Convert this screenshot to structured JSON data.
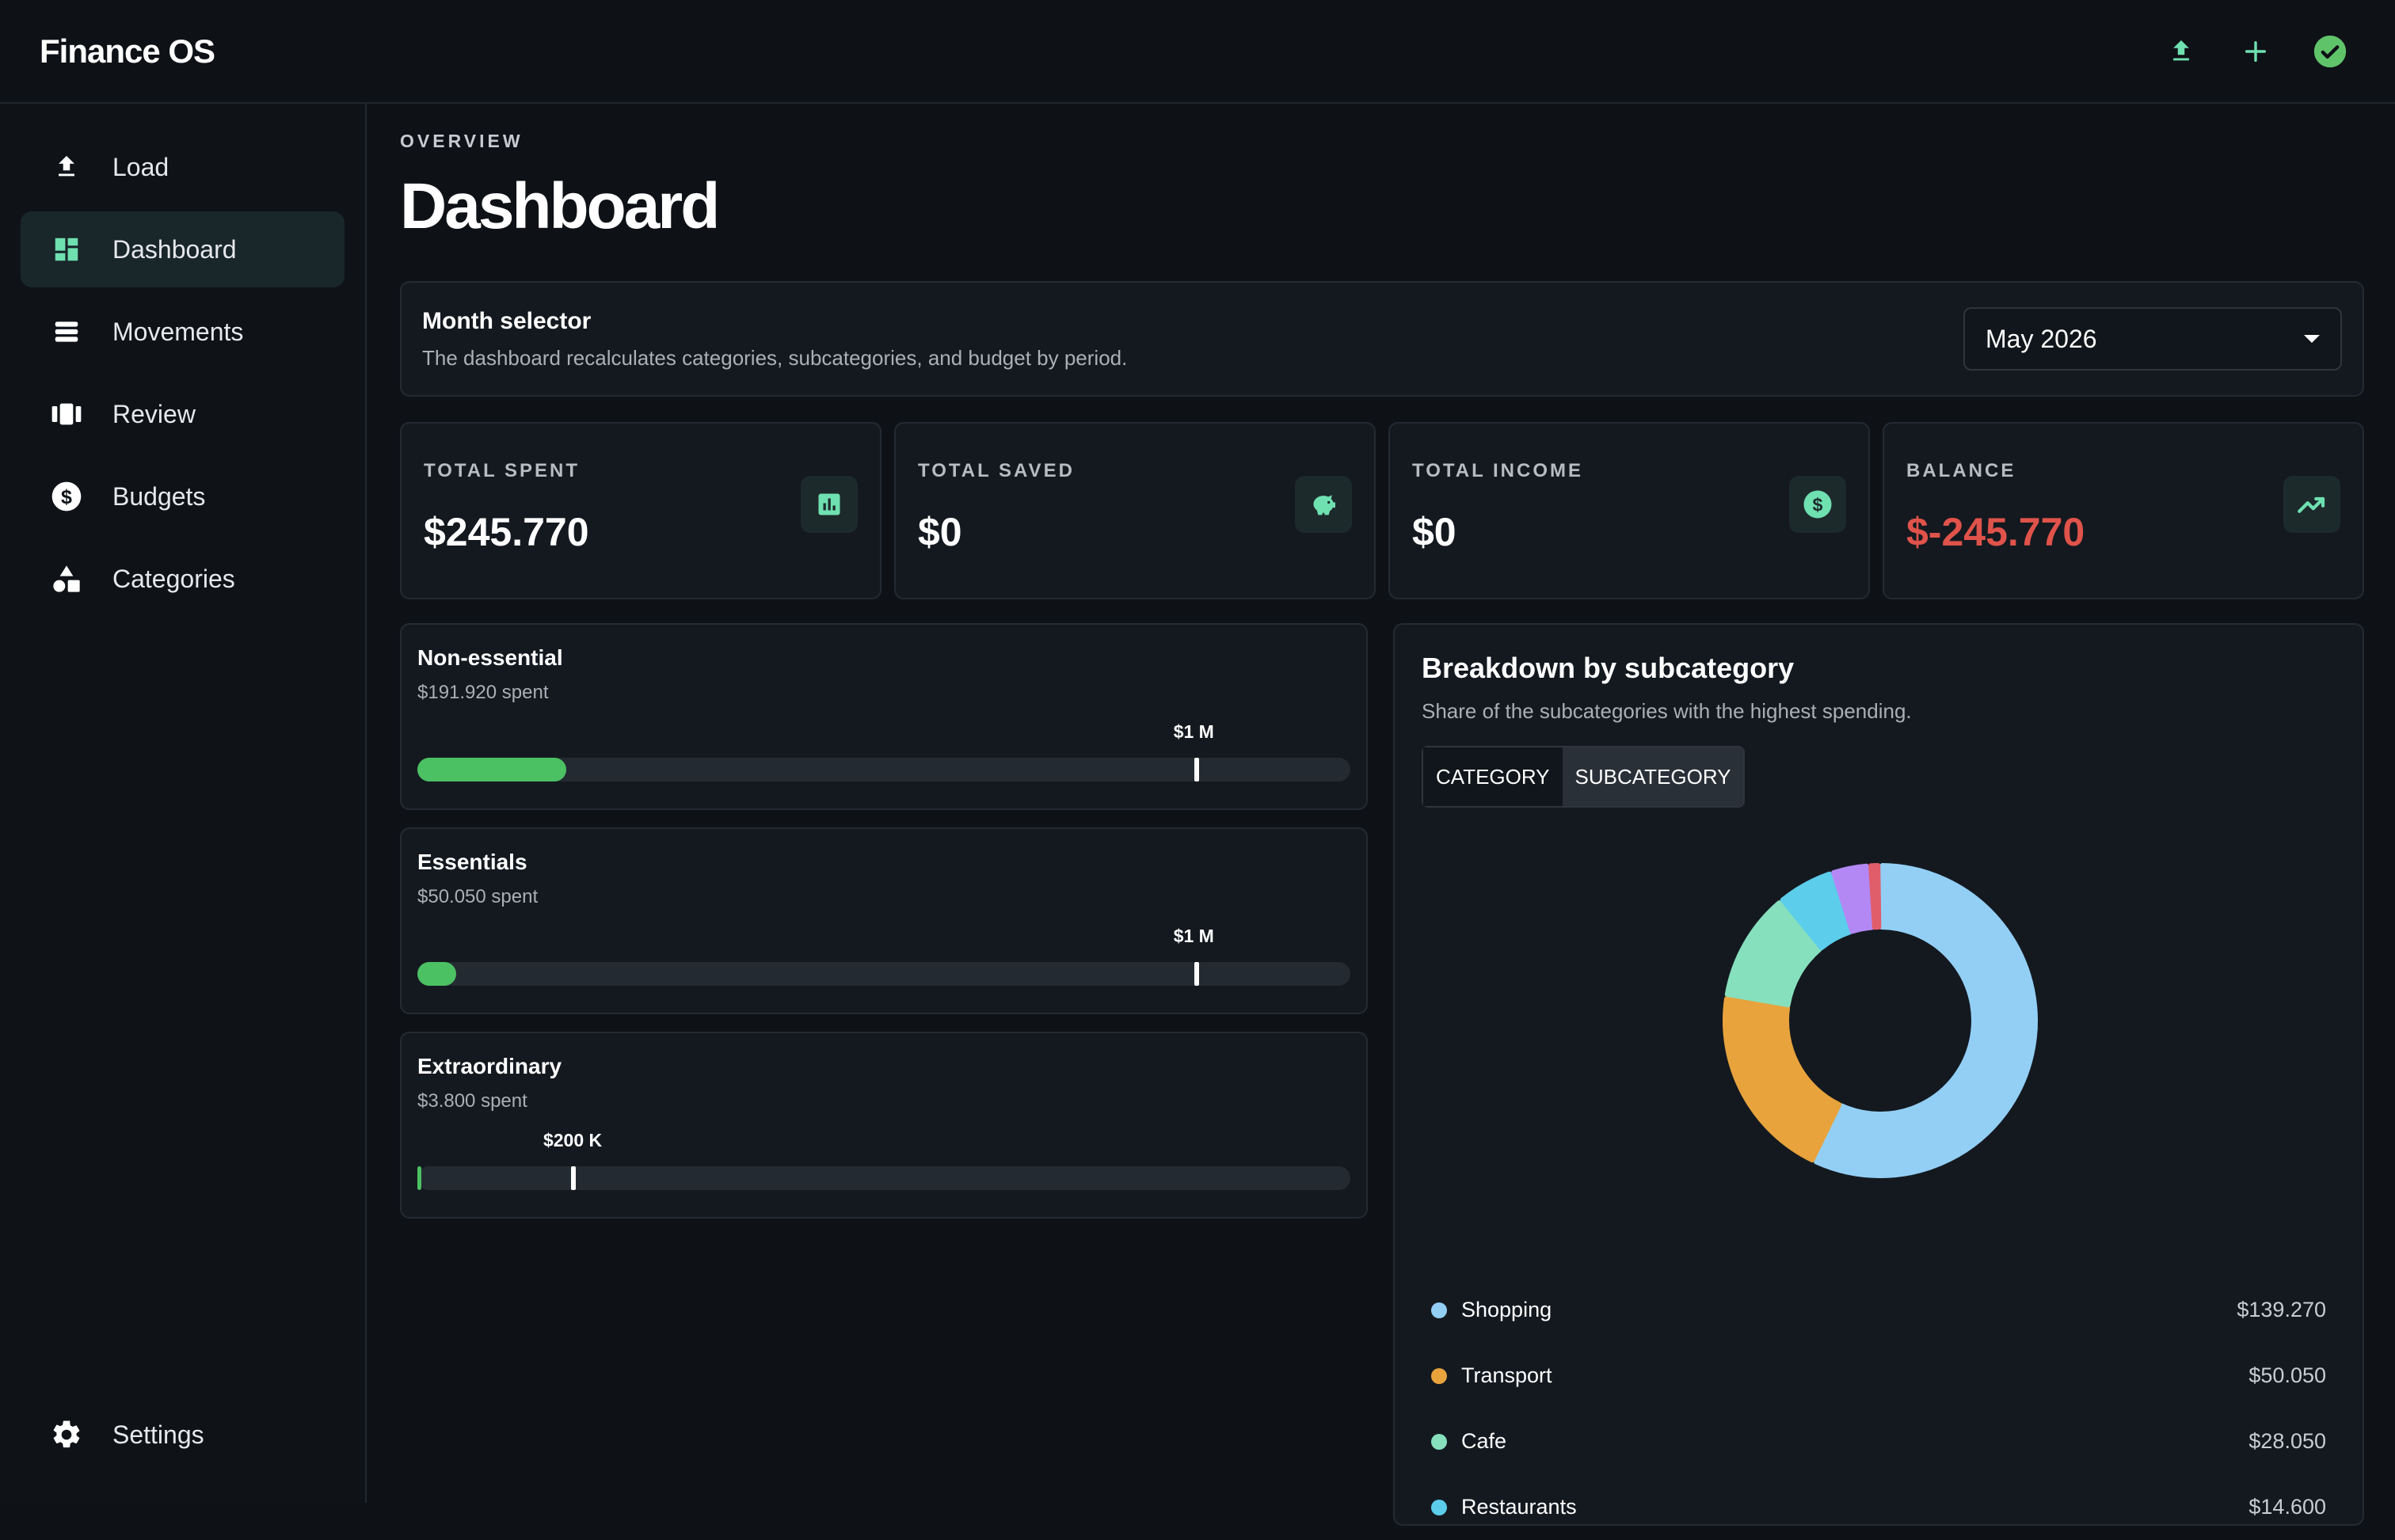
{
  "app": {
    "title": "Finance OS"
  },
  "topbar": {
    "icons": [
      "upload-icon",
      "plus-icon",
      "check-circle-icon"
    ]
  },
  "sidebar": {
    "items": [
      {
        "label": "Load",
        "icon": "upload-icon",
        "active": false
      },
      {
        "label": "Dashboard",
        "icon": "dashboard-icon",
        "active": true
      },
      {
        "label": "Movements",
        "icon": "list-icon",
        "active": false
      },
      {
        "label": "Review",
        "icon": "review-icon",
        "active": false
      },
      {
        "label": "Budgets",
        "icon": "dollar-circle-icon",
        "active": false
      },
      {
        "label": "Categories",
        "icon": "shapes-icon",
        "active": false
      }
    ],
    "settings": {
      "label": "Settings",
      "icon": "gear-icon"
    }
  },
  "header": {
    "overline": "OVERVIEW",
    "title": "Dashboard"
  },
  "month_selector": {
    "title": "Month selector",
    "description": "The dashboard recalculates categories, subcategories, and budget by period.",
    "value": "May 2026"
  },
  "kpis": [
    {
      "label": "TOTAL SPENT",
      "value": "$245.770",
      "icon": "bar-chart-icon",
      "negative": false
    },
    {
      "label": "TOTAL SAVED",
      "value": "$0",
      "icon": "piggy-bank-icon",
      "negative": false
    },
    {
      "label": "TOTAL INCOME",
      "value": "$0",
      "icon": "dollar-circle-icon",
      "negative": false
    },
    {
      "label": "BALANCE",
      "value": "$-245.770",
      "icon": "trending-up-icon",
      "negative": true
    }
  ],
  "budgets": [
    {
      "title": "Non-essential",
      "spent": "$191.920 spent",
      "limit": "$1 M",
      "fill_fraction": 0.16,
      "limit_fraction": 0.835
    },
    {
      "title": "Essentials",
      "spent": "$50.050 spent",
      "limit": "$1 M",
      "fill_fraction": 0.042,
      "limit_fraction": 0.835
    },
    {
      "title": "Extraordinary",
      "spent": "$3.800 spent",
      "limit": "$200 K",
      "fill_fraction": 0.004,
      "limit_fraction": 0.167
    }
  ],
  "breakdown": {
    "title": "Breakdown by subcategory",
    "subtitle": "Share of the subcategories with the highest spending.",
    "toggle": [
      {
        "label": "CATEGORY",
        "selected": false
      },
      {
        "label": "SUBCATEGORY",
        "selected": true
      }
    ],
    "legend": [
      {
        "name": "Shopping",
        "value": "$139.270",
        "color": "#93cff5"
      },
      {
        "name": "Transport",
        "value": "$50.050",
        "color": "#e8a33c"
      },
      {
        "name": "Cafe",
        "value": "$28.050",
        "color": "#86e0bd"
      },
      {
        "name": "Restaurants",
        "value": "$14.600",
        "color": "#5ccdea"
      }
    ]
  },
  "chart_data": {
    "type": "pie",
    "categories": [
      "Shopping",
      "Transport",
      "Cafe",
      "Restaurants",
      "",
      ""
    ],
    "values": [
      139270,
      50050,
      28050,
      14600,
      9500,
      2900
    ],
    "colors": [
      "#93cff5",
      "#e8a33c",
      "#86e0bd",
      "#5ccdea",
      "#b388f5",
      "#e05d6a"
    ]
  },
  "colors": {
    "accent": "#5fd6a0",
    "negative": "#e0534a",
    "bar_fill": "#4cc163"
  }
}
